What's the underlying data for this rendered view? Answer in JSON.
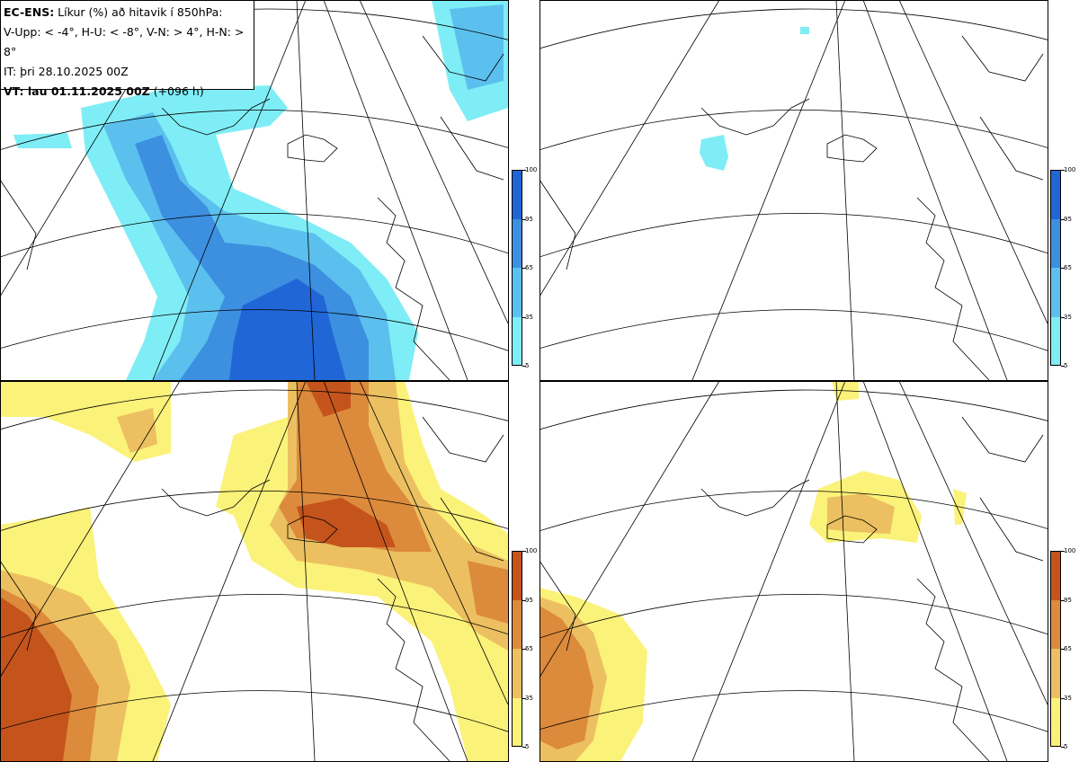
{
  "header": {
    "line1_bold": "EC-ENS:",
    "line1_rest": " Líkur (%) að hitavik í 850hPa:",
    "line2": "V-Upp: < -4°, H-U: < -8°, V-N: > 4°, H-N: > 8°",
    "line3": "IT: þri 28.10.2025 00Z",
    "line4_bold": "VT: lau 01.11.2025 00Z",
    "line4_rest": " (+096 h)"
  },
  "panels": [
    {
      "id": "v-upp",
      "threshold": "< -4°",
      "palette": "blue"
    },
    {
      "id": "h-u",
      "threshold": "< -8°",
      "palette": "blue"
    },
    {
      "id": "v-n",
      "threshold": "> 4°",
      "palette": "warm"
    },
    {
      "id": "h-n",
      "threshold": "> 8°",
      "palette": "warm"
    }
  ],
  "colorbar": {
    "ticks": [
      "100",
      "95",
      "65",
      "35",
      "5"
    ],
    "blue_colors": [
      "#2166d6",
      "#3d8fe0",
      "#5cc0ee",
      "#7fedf6"
    ],
    "warm_colors": [
      "#c5541c",
      "#dc8a3c",
      "#ecc060",
      "#fbf27a"
    ]
  }
}
